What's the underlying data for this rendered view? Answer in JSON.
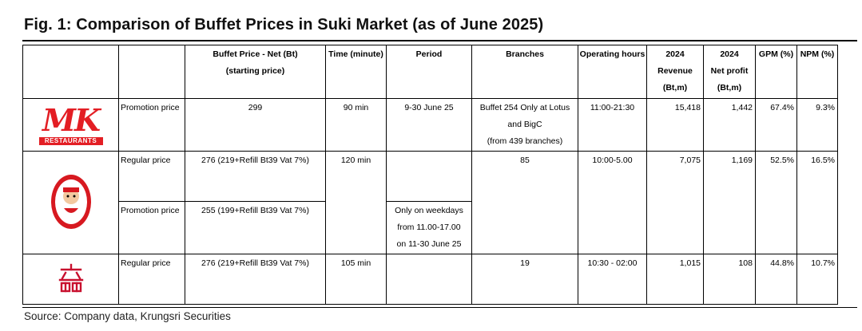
{
  "figure": {
    "title": "Fig. 1:  Comparison of Buffet Prices in Suki Market (as of June 2025)",
    "source": "Source: Company data, Krungsri Securities"
  },
  "headers": {
    "price": [
      "Buffet Price - Net (Bt)",
      "(starting price)"
    ],
    "time": "Time (minute)",
    "period": "Period",
    "branches": "Branches",
    "hours": "Operating hours",
    "revenue": [
      "2024",
      "Revenue",
      "(Bt,m)"
    ],
    "profit": [
      "2024",
      "Net profit",
      "(Bt,m)"
    ],
    "gpm": "GPM (%)",
    "npm": "NPM (%)"
  },
  "brands": {
    "mk": {
      "logo_text": "MK",
      "logo_subtext": "RESTAURANTS",
      "logo_color": "#e31e24",
      "price_type": "Promotion price",
      "price": "299",
      "time": "90 min",
      "period": "9-30 June 25",
      "branches": [
        "Buffet 254  Only at Lotus",
        "and BigC",
        "(from 439 branches)"
      ],
      "hours": "11:00-21:30",
      "revenue": "15,418",
      "profit": "1,442",
      "gpm": "67.4%",
      "npm": "9.3%"
    },
    "suki_teenoi": {
      "logo_color": "#d71920",
      "regular_label": "Regular price",
      "regular_price": "276 (219+Refill Bt39 Vat 7%)",
      "time": "120 min",
      "branches": "85",
      "hours": "10:00-5.00",
      "revenue": "7,075",
      "profit": "1,169",
      "gpm": "52.5%",
      "npm": "16.5%",
      "promo_label": "Promotion price",
      "promo_price": "255 (199+Refill Bt39 Vat 7%)",
      "promo_period": [
        "Only on weekdays",
        "from 11.00-17.00",
        "on 11-30 June 25"
      ]
    },
    "third": {
      "logo_color": "#c8102e",
      "regular_label": "Regular price",
      "regular_price": "276  (219+Refill Bt39 Vat 7%)",
      "time": "105 min",
      "branches": "19",
      "hours": "10:30 - 02:00",
      "revenue": "1,015",
      "profit": "108",
      "gpm": "44.8%",
      "npm": "10.7%"
    }
  }
}
